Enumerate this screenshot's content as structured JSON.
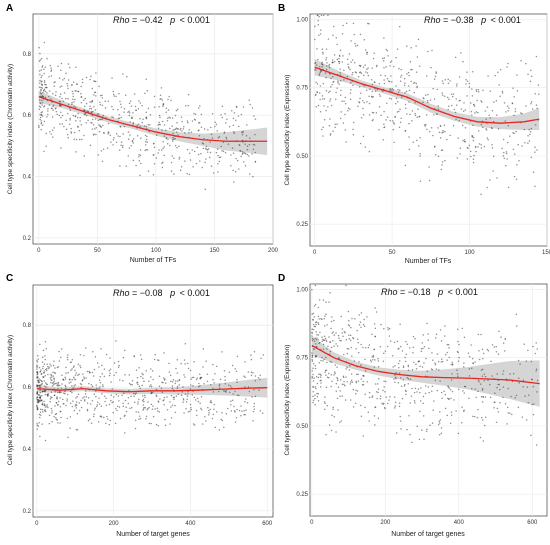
{
  "figure": {
    "panels": [
      "A",
      "B",
      "C",
      "D"
    ]
  },
  "colors": {
    "point": "#333333",
    "fit_line": "#e8261f",
    "confidence_band": "#c7c7c7",
    "grid": "#ebebeb",
    "frame": "#555555"
  },
  "chart_data": [
    {
      "panel": "A",
      "type": "scatter",
      "annotation": "Rho = −0.42  p < 0.001",
      "annotation_parts": {
        "rho_label": "Rho",
        "rho_value": "= −0.42",
        "p_label": "p",
        "p_value": "< 0.001"
      },
      "xlabel": "Number of TFs",
      "ylabel": "Cell type specificity index (Chromatin activity)",
      "xlim": [
        -5,
        200
      ],
      "ylim": [
        0.18,
        0.93
      ],
      "xticks": [
        0,
        50,
        100,
        150,
        200
      ],
      "xtick_labels": [
        "0",
        "50",
        "100",
        "150",
        "200"
      ],
      "yticks": [
        0.2,
        0.4,
        0.6,
        0.8
      ],
      "ytick_labels": [
        "0.2",
        "0.4",
        "0.6",
        "0.8"
      ],
      "grid": true,
      "fit": {
        "x": [
          0,
          20,
          40,
          60,
          80,
          100,
          120,
          140,
          160,
          180,
          195
        ],
        "y": [
          0.66,
          0.635,
          0.61,
          0.585,
          0.565,
          0.545,
          0.53,
          0.52,
          0.515,
          0.515,
          0.515
        ],
        "band": [
          0.02,
          0.012,
          0.01,
          0.01,
          0.01,
          0.012,
          0.015,
          0.02,
          0.03,
          0.038,
          0.045
        ]
      },
      "points_summary": {
        "n": 700,
        "x_range": [
          0,
          185
        ],
        "x_skew": 1.4,
        "y_center": [
          0.66,
          0.515
        ],
        "y_spread": 0.12,
        "seed": 11
      }
    },
    {
      "panel": "B",
      "type": "scatter",
      "annotation": "Rho = −0.38  p < 0.001",
      "annotation_parts": {
        "rho_label": "Rho",
        "rho_value": "= −0.38",
        "p_label": "p",
        "p_value": "< 0.001"
      },
      "xlabel": "Number of TFs",
      "ylabel": "Cell type specificity index (Expression)",
      "xlim": [
        -3,
        150
      ],
      "ylim": [
        0.17,
        1.02
      ],
      "xticks": [
        0,
        50,
        100,
        150
      ],
      "xtick_labels": [
        "0",
        "50",
        "100",
        "150"
      ],
      "yticks": [
        0.25,
        0.5,
        0.75,
        1.0
      ],
      "ytick_labels": [
        "0.25",
        "0.50",
        "0.75",
        "1.00"
      ],
      "grid": true,
      "fit": {
        "x": [
          0,
          15,
          30,
          45,
          60,
          75,
          90,
          105,
          120,
          135,
          145
        ],
        "y": [
          0.825,
          0.795,
          0.765,
          0.74,
          0.715,
          0.675,
          0.645,
          0.625,
          0.62,
          0.625,
          0.635
        ],
        "band": [
          0.03,
          0.018,
          0.012,
          0.012,
          0.014,
          0.016,
          0.016,
          0.018,
          0.022,
          0.03,
          0.04
        ]
      },
      "points_summary": {
        "n": 650,
        "x_range": [
          0,
          145
        ],
        "x_skew": 1.3,
        "y_center": [
          0.8,
          0.62
        ],
        "y_spread": 0.2,
        "seed": 23
      }
    },
    {
      "panel": "C",
      "type": "scatter",
      "annotation": "Rho = −0.08  p < 0.001",
      "annotation_parts": {
        "rho_label": "Rho",
        "rho_value": "= −0.08",
        "p_label": "p",
        "p_value": "< 0.001"
      },
      "xlabel": "Number of target genes",
      "ylabel": "Cell type specificity index (Chromatin activity)",
      "xlim": [
        -10,
        615
      ],
      "ylim": [
        0.18,
        0.93
      ],
      "xticks": [
        0,
        200,
        400,
        600
      ],
      "xtick_labels": [
        "0",
        "200",
        "400",
        "600"
      ],
      "yticks": [
        0.2,
        0.4,
        0.6,
        0.8
      ],
      "ytick_labels": [
        "0.2",
        "0.4",
        "0.6",
        "0.8"
      ],
      "grid": true,
      "fit": {
        "x": [
          0,
          60,
          120,
          180,
          240,
          300,
          360,
          420,
          480,
          540,
          600
        ],
        "y": [
          0.595,
          0.59,
          0.595,
          0.588,
          0.585,
          0.588,
          0.588,
          0.59,
          0.593,
          0.596,
          0.598
        ],
        "band": [
          0.012,
          0.008,
          0.008,
          0.008,
          0.009,
          0.01,
          0.012,
          0.015,
          0.02,
          0.026,
          0.032
        ]
      },
      "points_summary": {
        "n": 800,
        "x_range": [
          0,
          590
        ],
        "x_skew": 1.8,
        "y_center": [
          0.595,
          0.595
        ],
        "y_spread": 0.11,
        "seed": 37
      }
    },
    {
      "panel": "D",
      "type": "scatter",
      "annotation": "Rho = −0.18  p < 0.001",
      "annotation_parts": {
        "rho_label": "Rho",
        "rho_value": "= −0.18",
        "p_label": "p",
        "p_value": "< 0.001"
      },
      "xlabel": "Number of target genes",
      "ylabel": "Cell type specificity index (Expression)",
      "xlim": [
        -5,
        640
      ],
      "ylim": [
        0.17,
        1.02
      ],
      "xticks": [
        0,
        200,
        400,
        600
      ],
      "xtick_labels": [
        "0",
        "200",
        "400",
        "600"
      ],
      "yticks": [
        0.25,
        0.5,
        0.75,
        1.0
      ],
      "ytick_labels": [
        "0.25",
        "0.50",
        "0.75",
        "1.00"
      ],
      "grid": true,
      "fit": {
        "x": [
          0,
          60,
          120,
          180,
          240,
          300,
          360,
          420,
          480,
          540,
          620
        ],
        "y": [
          0.795,
          0.75,
          0.72,
          0.7,
          0.688,
          0.68,
          0.677,
          0.675,
          0.672,
          0.668,
          0.655
        ],
        "band": [
          0.035,
          0.02,
          0.015,
          0.015,
          0.018,
          0.022,
          0.03,
          0.04,
          0.055,
          0.07,
          0.085
        ]
      },
      "points_summary": {
        "n": 700,
        "x_range": [
          0,
          615
        ],
        "x_skew": 1.6,
        "y_center": [
          0.79,
          0.66
        ],
        "y_spread": 0.2,
        "seed": 53
      }
    }
  ]
}
